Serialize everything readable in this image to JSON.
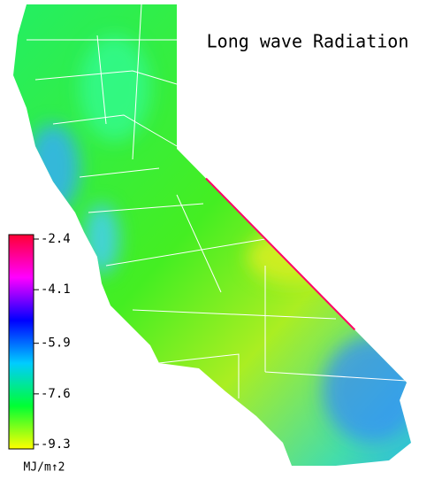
{
  "title": "Long wave Radiation",
  "colorbar": {
    "ticks": [
      -2.4,
      -4.1,
      -5.9,
      -7.6,
      -9.3
    ],
    "unit": "MJ/m↑2",
    "colors": [
      "#ff0033",
      "#ff00ff",
      "#0000ff",
      "#00ccff",
      "#00ff33",
      "#ffff00"
    ]
  }
}
